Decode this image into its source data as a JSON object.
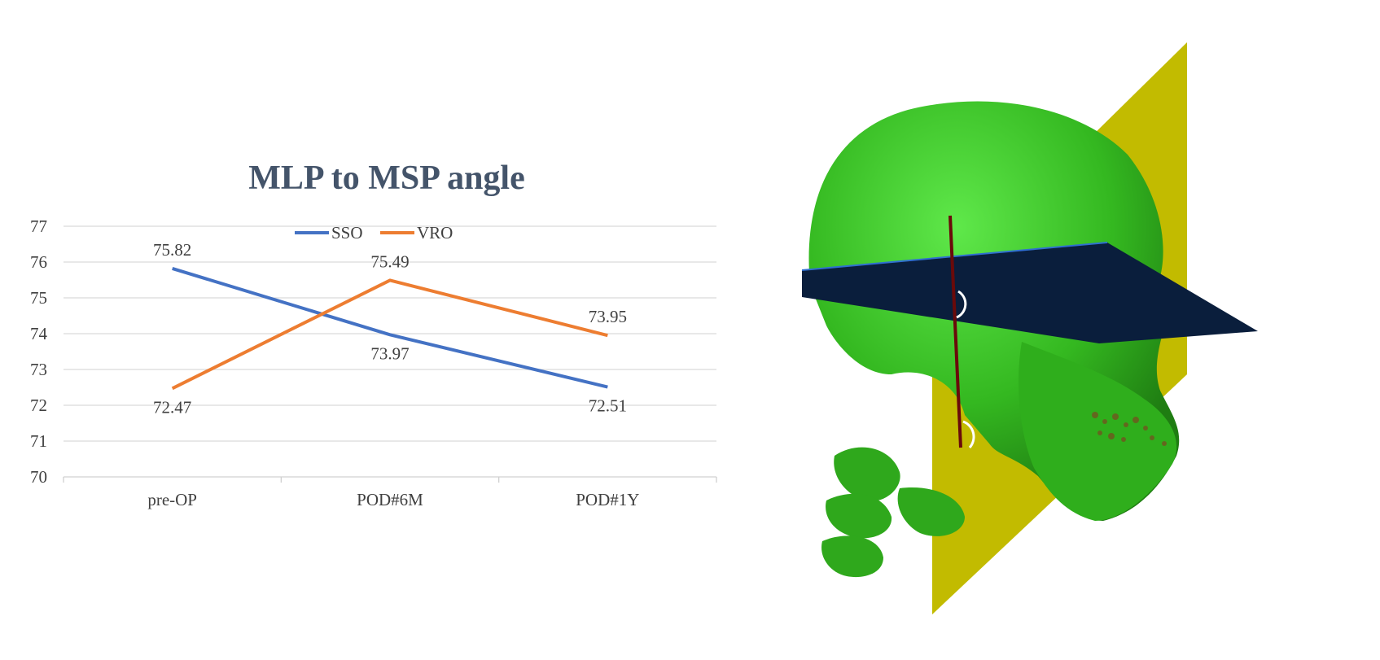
{
  "chart_data": {
    "type": "line",
    "title": "MLP to MSP angle",
    "xlabel": "",
    "ylabel": "",
    "categories": [
      "pre-OP",
      "POD#6M",
      "POD#1Y"
    ],
    "ylim": [
      70,
      77
    ],
    "yticks": [
      "70",
      "71",
      "72",
      "73",
      "74",
      "75",
      "76",
      "77"
    ],
    "grid": true,
    "legend_position": "top",
    "series": [
      {
        "name": "SSO",
        "color": "#4472c4",
        "values": [
          75.82,
          73.97,
          72.51
        ],
        "labels": [
          "75.82",
          "73.97",
          "72.51"
        ]
      },
      {
        "name": "VRO",
        "color": "#ed7d31",
        "values": [
          72.47,
          75.49,
          73.95
        ],
        "labels": [
          "72.47",
          "75.49",
          "73.95"
        ]
      }
    ]
  },
  "figure": {
    "skull_color": "#3fcf2a",
    "sagittal_plane_color": "#c8c000",
    "horizontal_plane_color": "#0a1e3c"
  }
}
